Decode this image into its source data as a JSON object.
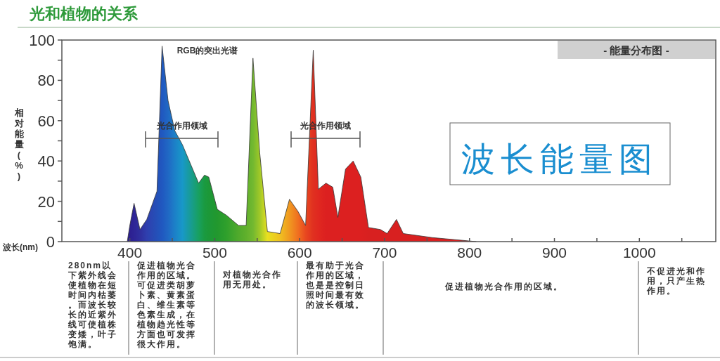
{
  "chart_data": {
    "type": "area",
    "title": "光和植物的关系",
    "xlabel": "波长(nm)",
    "ylabel": "相对能量(%)",
    "x": [
      397,
      400,
      405,
      412,
      420,
      432,
      438,
      445,
      453,
      462,
      481,
      488,
      493,
      503,
      514,
      528,
      537,
      545,
      553,
      562,
      577,
      588,
      598,
      607,
      616,
      622,
      631,
      639,
      645,
      654,
      663,
      672,
      681,
      695,
      703,
      714,
      722,
      756,
      808
    ],
    "series": [
      {
        "values": [
          0,
          8,
          19,
          6,
          11,
          25,
          97,
          70,
          55,
          48,
          29,
          33,
          32,
          16,
          13,
          8,
          8,
          91,
          44,
          5,
          4,
          21,
          15,
          8,
          95,
          26,
          29,
          27,
          12,
          36,
          40,
          32,
          7,
          6,
          4,
          11,
          4,
          2,
          0
        ],
        "colors": [
          "#2a1c8a",
          "#2c1f90",
          "#2e2596",
          "#2f2f9e",
          "#2f3fae",
          "#2450b8",
          "#2058c0",
          "#2068c4",
          "#1c80c8",
          "#1898c8",
          "#18a060",
          "#1a9a40",
          "#1c9838",
          "#22982e",
          "#30a02c",
          "#50aa2c",
          "#60b02c",
          "#72b830",
          "#a0c828",
          "#e8e020",
          "#f0c020",
          "#f09820",
          "#f07020",
          "#e84820",
          "#e03020",
          "#e02820",
          "#dc2020",
          "#dc2020",
          "#dc2020",
          "#dc2020",
          "#dc2020",
          "#dc2020",
          "#d82020",
          "#d82020",
          "#d82020",
          "#d82020",
          "#d82020",
          "#d82020",
          "#d82020"
        ]
      }
    ],
    "xlim": [
      320,
      1090
    ],
    "ylim": [
      0,
      100
    ],
    "xticks": [
      400,
      {
        "value": 450,
        "label": null
      },
      500,
      {
        "value": 550,
        "label": null
      },
      600,
      {
        "value": 650,
        "label": null
      },
      700,
      {
        "value": 750,
        "label": null
      },
      800,
      {
        "value": 850,
        "label": null
      },
      900,
      {
        "value": 950,
        "label": null
      },
      1000,
      {
        "value": 1050,
        "label": null
      }
    ],
    "yticks": [
      0,
      {
        "value": 10,
        "label": null
      },
      20,
      {
        "value": 30,
        "label": null
      },
      40,
      {
        "value": 50,
        "label": null
      },
      60,
      {
        "value": 70,
        "label": null
      },
      80,
      {
        "value": 90,
        "label": null
      },
      100
    ],
    "grid": false,
    "annotations": [
      "RGB的突出光谱",
      "- 能量分布图 -",
      "波长能量图",
      "光合作用领域",
      "光合作用领域",
      "280nm以下紫外线会使植物在短时间内枯萎。而波长较长的近紫外线可使植株变矮，叶子饱满。",
      "促进植物光合作用的区域。可促进类胡萝卜素、黄素蛋白、维生素等色素生成，在植物趋光性等方面也可发挥很大作用。",
      "对植物光合作用无用处。",
      "最有助于光合作用的区域，也是是控制日照时间最有效的波长领域。",
      "促进植物光合作用的区域。",
      "不促进光和作用，只产生热作用。"
    ]
  }
}
